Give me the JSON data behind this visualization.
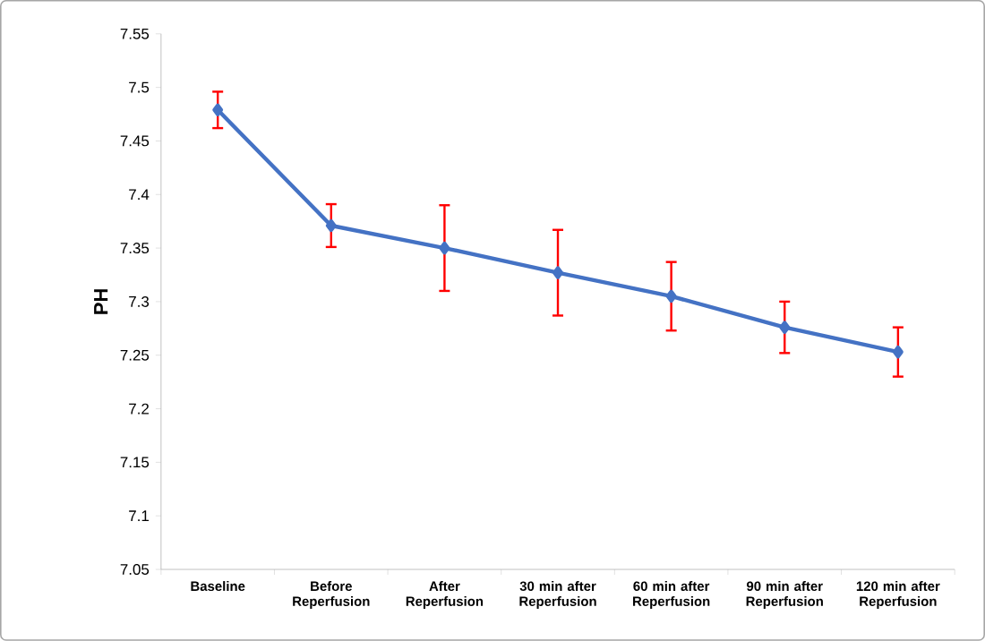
{
  "chart_data": {
    "type": "line",
    "ylabel": "PH",
    "categories": [
      "Baseline",
      "Before Reperfusion",
      "After Reperfusion",
      "30 min after Reperfusion",
      "60 min after Reperfusion",
      "90 min after Reperfusion",
      "120 min after Reperfusion"
    ],
    "series": [
      {
        "color": "#4472c4",
        "values": [
          7.479,
          7.371,
          7.35,
          7.327,
          7.305,
          7.276,
          7.253
        ],
        "errors": [
          0.017,
          0.02,
          0.04,
          0.04,
          0.032,
          0.024,
          0.023
        ]
      }
    ],
    "ylim": [
      7.05,
      7.55
    ],
    "yticks": [
      7.05,
      7.1,
      7.15,
      7.2,
      7.25,
      7.3,
      7.35,
      7.4,
      7.45,
      7.5,
      7.55
    ],
    "marker": "diamond",
    "line_style": "solid"
  }
}
